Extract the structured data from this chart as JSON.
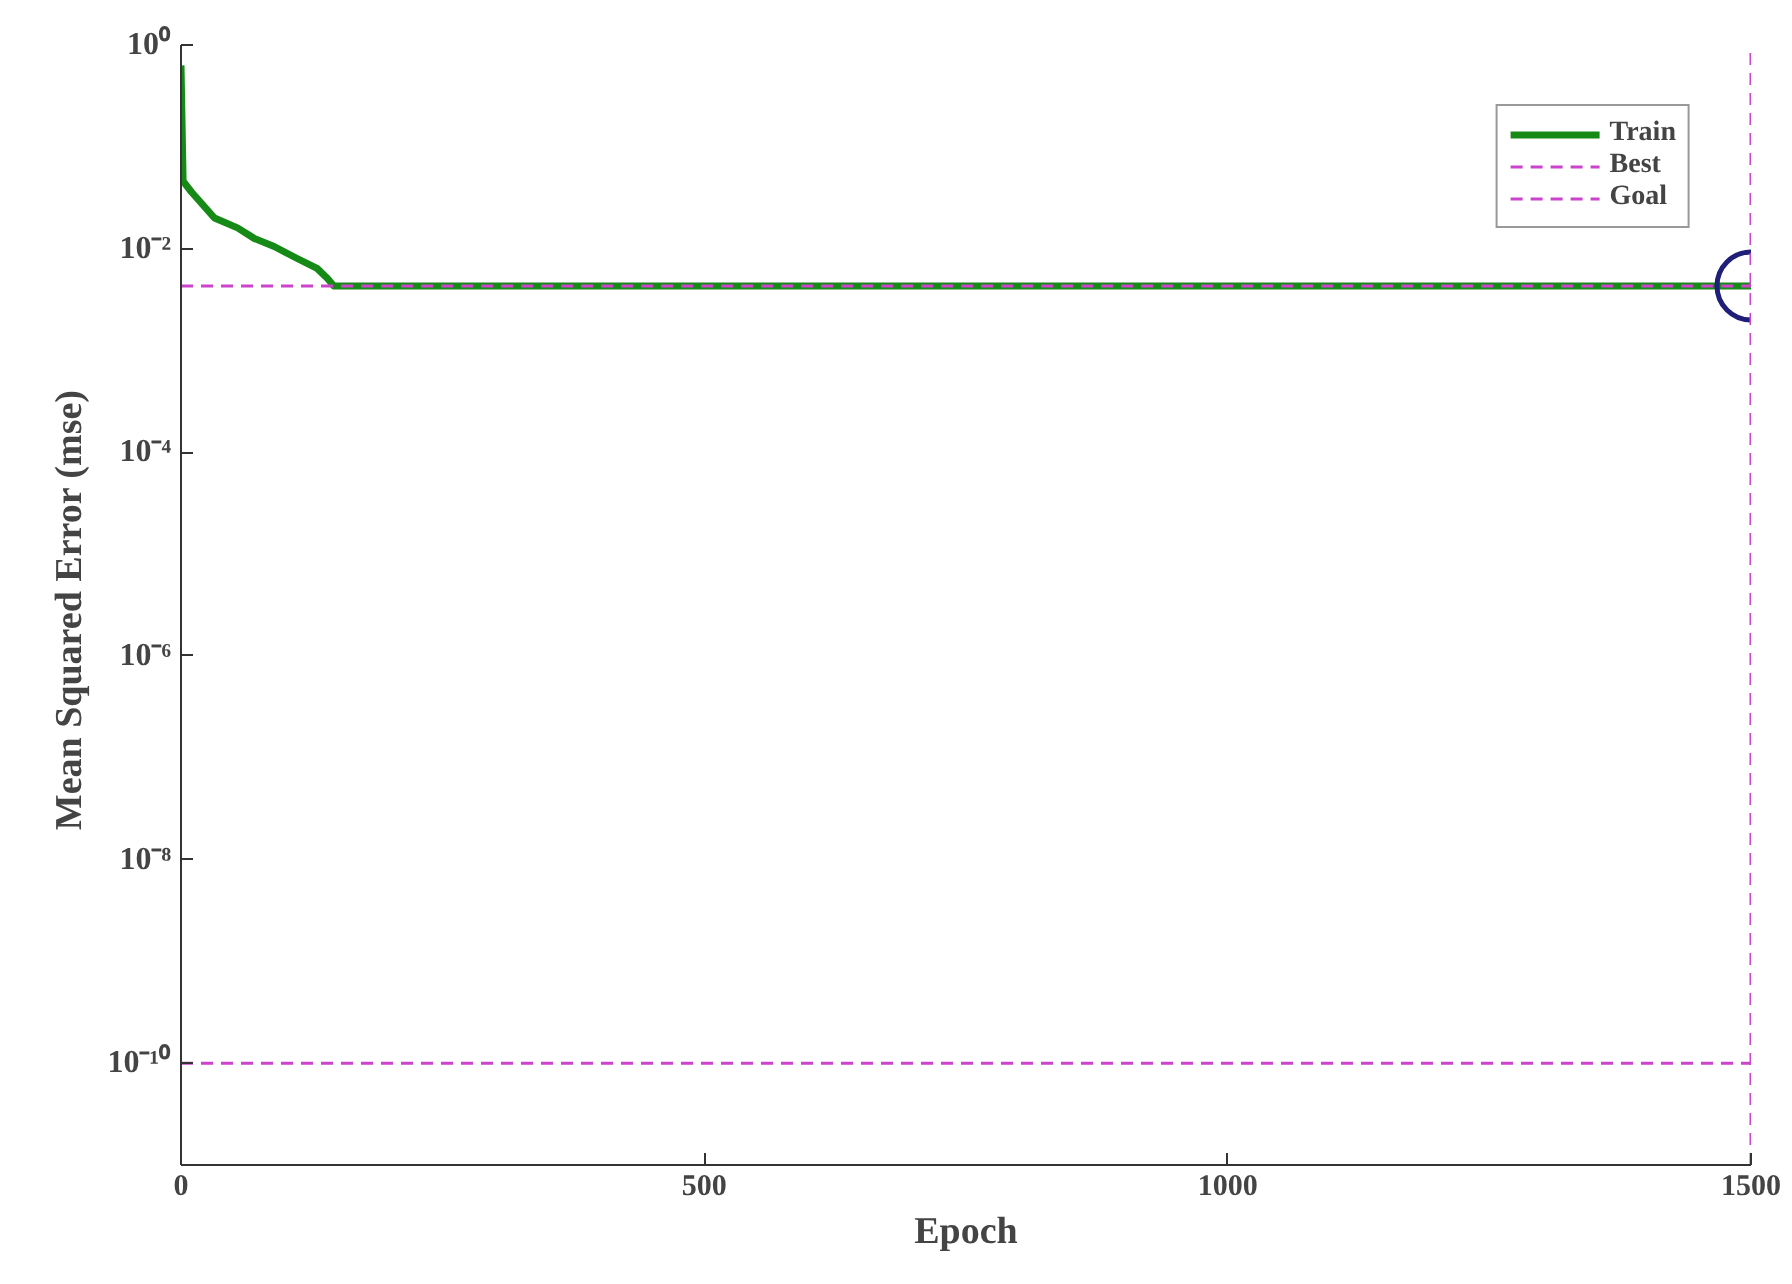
{
  "chart_data": {
    "type": "line",
    "xlabel": "Epoch",
    "ylabel": "Mean Squared Error  (mse)",
    "log": "y",
    "grid": false,
    "legend": "top right",
    "xlim": [
      0,
      1500
    ],
    "xticks": [
      0,
      500,
      1000,
      1500
    ],
    "ylim": [
      1e-11,
      1
    ],
    "yticks": [
      {
        "value": 1,
        "label": "10⁰"
      },
      {
        "value": 0.01,
        "label": "10⁻²"
      },
      {
        "value": 0.0001,
        "label": "10⁻⁴"
      },
      {
        "value": 1e-06,
        "label": "10⁻⁶"
      },
      {
        "value": 1e-08,
        "label": "10⁻⁸"
      },
      {
        "value": 1e-10,
        "label": "10⁻¹⁰"
      }
    ],
    "series": [
      {
        "name": "Train",
        "color": "#168a16",
        "x": [
          0,
          2,
          10,
          32,
          54,
          70,
          89,
          111,
          130,
          140,
          146,
          1500
        ],
        "values": [
          0.63,
          0.046,
          0.036,
          0.02,
          0.016,
          0.0126,
          0.0105,
          0.008,
          0.0064,
          0.0051,
          0.0043,
          0.0043
        ]
      },
      {
        "type": "scatter",
        "marker": "circle",
        "color": "#1f1f7a",
        "x": [
          1500
        ],
        "values": [
          0.0043
        ]
      }
    ],
    "ref_lines": [
      {
        "axis": "y",
        "value": 0.0043,
        "label": "Best",
        "color": "#cc44cc",
        "line_style": "dashed"
      },
      {
        "axis": "x",
        "value": 1500,
        "color": "#cc44cc",
        "line_style": "dashed"
      },
      {
        "axis": "y",
        "value": 1e-10,
        "label": "Goal",
        "color": "#cc44cc",
        "line_style": "dashed"
      }
    ]
  }
}
